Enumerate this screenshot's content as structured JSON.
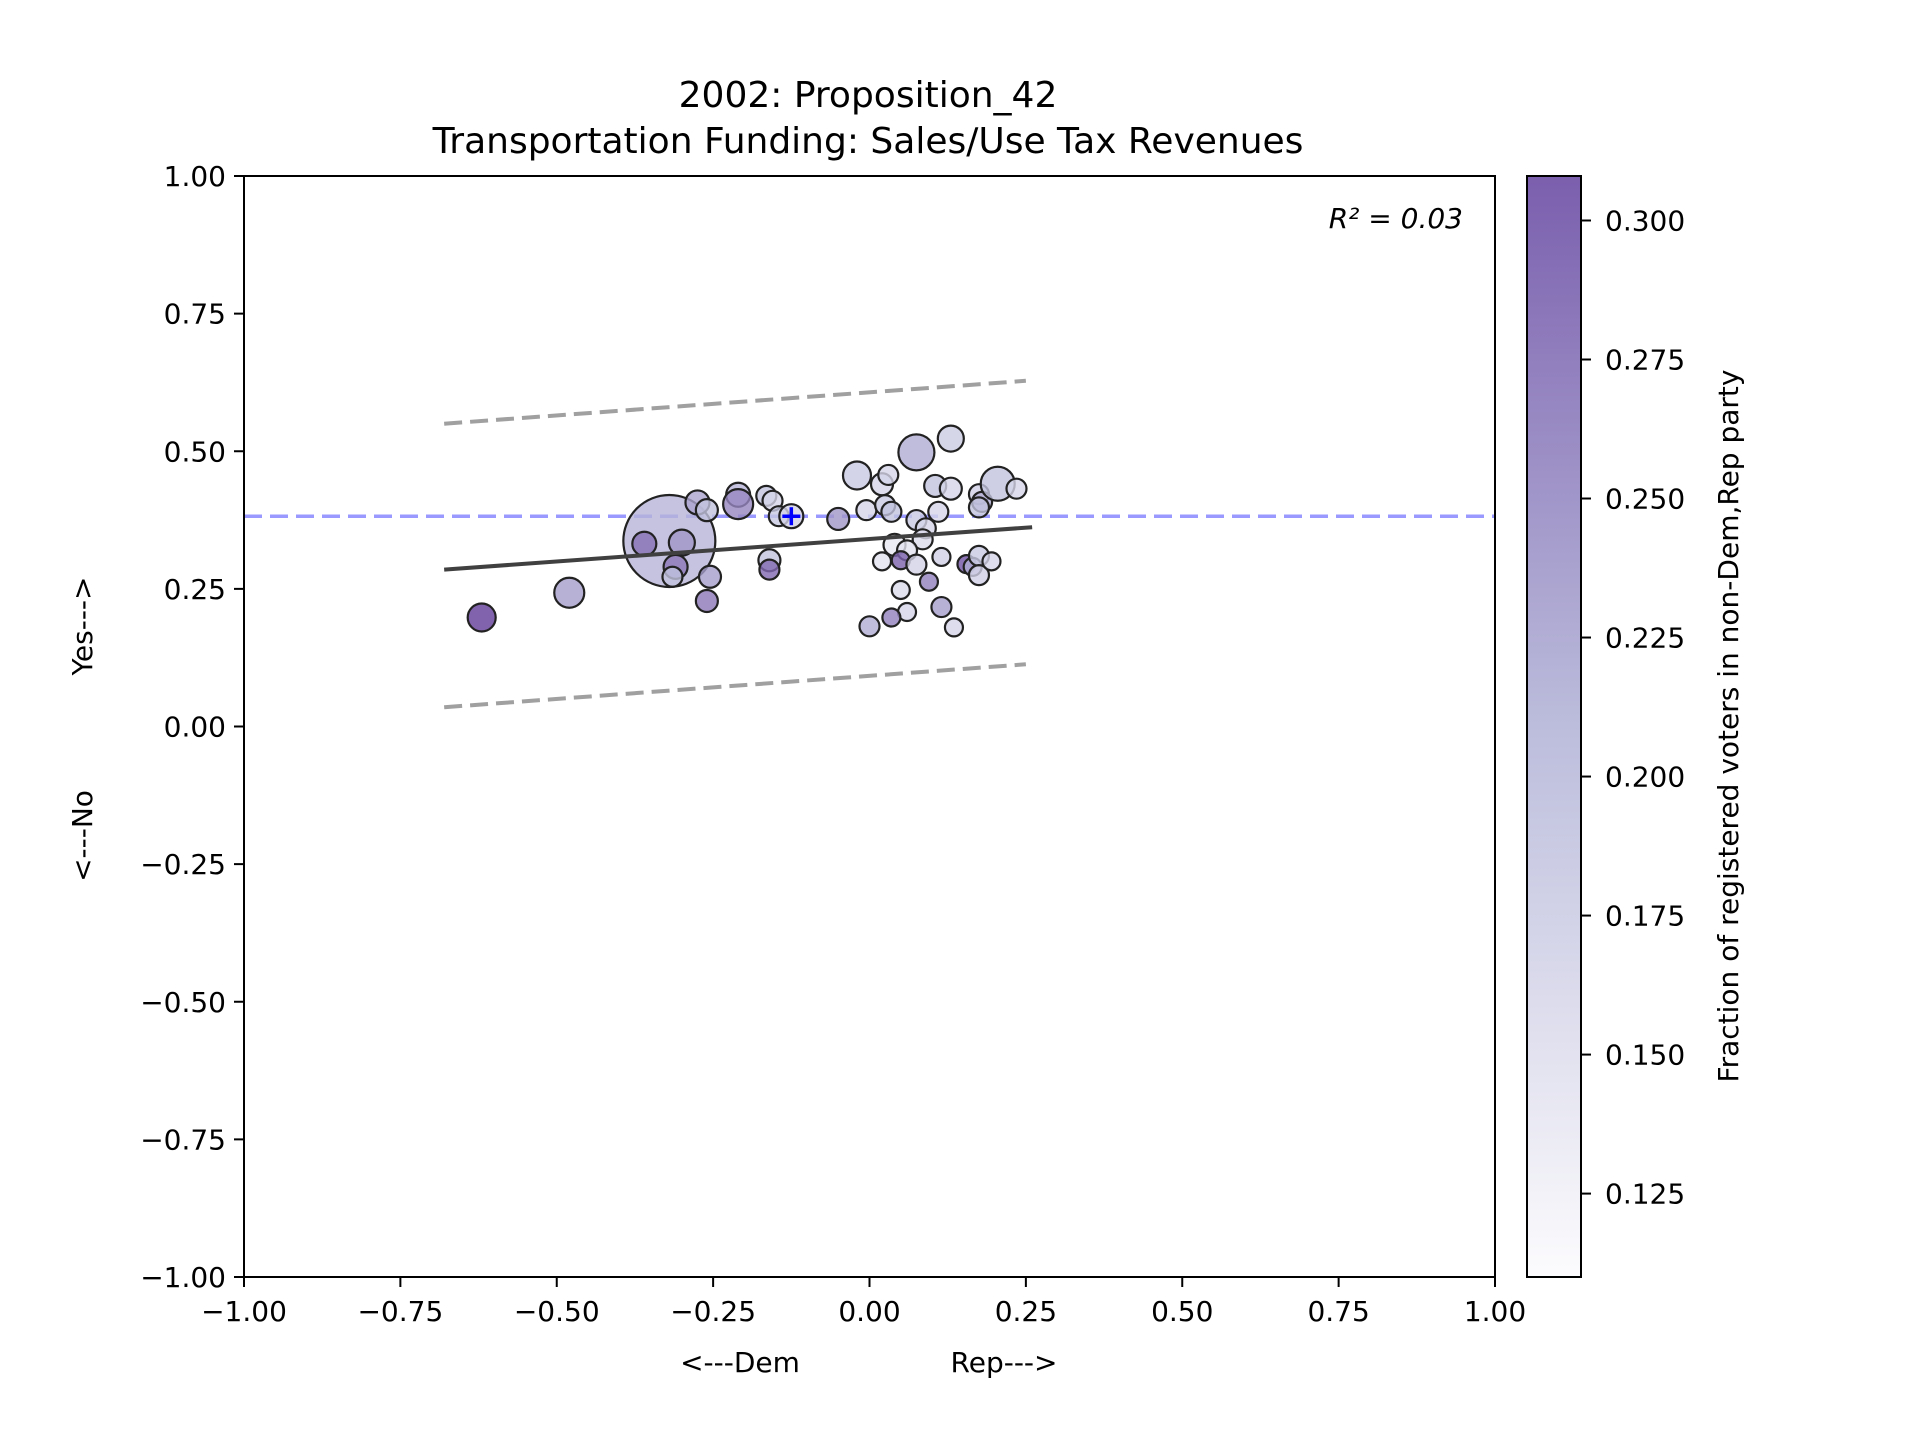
{
  "chart_data": {
    "type": "scatter",
    "title_line1": "2002: Proposition_42",
    "title_line2": "Transportation Funding: Sales/Use Tax Revenues",
    "xlabel_left": "<---Dem",
    "xlabel_right": "Rep--->",
    "ylabel_bottom": "<---No",
    "ylabel_top": "Yes--->",
    "colorbar_label": "Fraction of registered voters in non-Dem,Rep party",
    "annotation": "R² = 0.03",
    "xlim": [
      -1.0,
      1.0
    ],
    "ylim": [
      -1.0,
      1.0
    ],
    "x_ticks": [
      "−1.00",
      "−0.75",
      "−0.50",
      "−0.25",
      "0.00",
      "0.25",
      "0.50",
      "0.75",
      "1.00"
    ],
    "x_tick_values": [
      -1.0,
      -0.75,
      -0.5,
      -0.25,
      0.0,
      0.25,
      0.5,
      0.75,
      1.0
    ],
    "y_ticks": [
      "−1.00",
      "−0.75",
      "−0.50",
      "−0.25",
      "0.00",
      "0.25",
      "0.50",
      "0.75",
      "1.00"
    ],
    "y_tick_values": [
      -1.0,
      -0.75,
      -0.5,
      -0.25,
      0.0,
      0.25,
      0.5,
      0.75,
      1.0
    ],
    "colorbar_range": [
      0.11,
      0.308
    ],
    "colorbar_ticks": [
      "0.125",
      "0.150",
      "0.175",
      "0.200",
      "0.225",
      "0.250",
      "0.275",
      "0.300"
    ],
    "colorbar_tick_values": [
      0.125,
      0.15,
      0.175,
      0.2,
      0.225,
      0.25,
      0.275,
      0.3
    ],
    "colormap": {
      "low": "#fcfbfd",
      "mid": "#bcbddc",
      "high": "#54278f"
    },
    "reference_y": 0.382,
    "reference_color": "#9999ff",
    "reference_point": {
      "x": -0.125,
      "y": 0.382,
      "color": "#0000ff"
    },
    "fit_line": {
      "x": [
        -0.68,
        0.26
      ],
      "y": [
        0.285,
        0.362
      ],
      "color": "#404040"
    },
    "upper_band": {
      "x": [
        -0.68,
        0.25
      ],
      "y": [
        0.55,
        0.628
      ],
      "color": "#a0a0a0"
    },
    "lower_band": {
      "x": [
        -0.68,
        0.25
      ],
      "y": [
        0.035,
        0.113
      ],
      "color": "#a0a0a0"
    },
    "points": [
      {
        "x": -0.62,
        "y": 0.198,
        "c": 0.295,
        "s": 14
      },
      {
        "x": -0.48,
        "y": 0.243,
        "c": 0.23,
        "s": 15
      },
      {
        "x": -0.32,
        "y": 0.337,
        "c": 0.215,
        "s": 46
      },
      {
        "x": -0.36,
        "y": 0.332,
        "c": 0.26,
        "s": 12
      },
      {
        "x": -0.3,
        "y": 0.334,
        "c": 0.235,
        "s": 13
      },
      {
        "x": -0.31,
        "y": 0.29,
        "c": 0.255,
        "s": 12
      },
      {
        "x": -0.315,
        "y": 0.272,
        "c": 0.2,
        "s": 10
      },
      {
        "x": -0.255,
        "y": 0.272,
        "c": 0.23,
        "s": 11
      },
      {
        "x": -0.26,
        "y": 0.228,
        "c": 0.255,
        "s": 11
      },
      {
        "x": -0.275,
        "y": 0.407,
        "c": 0.225,
        "s": 12
      },
      {
        "x": -0.26,
        "y": 0.393,
        "c": 0.2,
        "s": 11
      },
      {
        "x": -0.21,
        "y": 0.421,
        "c": 0.215,
        "s": 12
      },
      {
        "x": -0.21,
        "y": 0.404,
        "c": 0.245,
        "s": 15
      },
      {
        "x": -0.165,
        "y": 0.419,
        "c": 0.2,
        "s": 10
      },
      {
        "x": -0.155,
        "y": 0.41,
        "c": 0.17,
        "s": 10
      },
      {
        "x": -0.16,
        "y": 0.302,
        "c": 0.2,
        "s": 11
      },
      {
        "x": -0.16,
        "y": 0.285,
        "c": 0.265,
        "s": 10
      },
      {
        "x": -0.145,
        "y": 0.382,
        "c": 0.19,
        "s": 10
      },
      {
        "x": -0.125,
        "y": 0.382,
        "c": 0.175,
        "s": 12
      },
      {
        "x": -0.05,
        "y": 0.377,
        "c": 0.235,
        "s": 11
      },
      {
        "x": -0.02,
        "y": 0.456,
        "c": 0.19,
        "s": 14
      },
      {
        "x": 0.02,
        "y": 0.44,
        "c": 0.17,
        "s": 11
      },
      {
        "x": 0.03,
        "y": 0.457,
        "c": 0.17,
        "s": 10
      },
      {
        "x": -0.005,
        "y": 0.393,
        "c": 0.17,
        "s": 10
      },
      {
        "x": 0.025,
        "y": 0.402,
        "c": 0.19,
        "s": 10
      },
      {
        "x": 0.035,
        "y": 0.39,
        "c": 0.2,
        "s": 10
      },
      {
        "x": 0.075,
        "y": 0.498,
        "c": 0.22,
        "s": 18
      },
      {
        "x": 0.13,
        "y": 0.523,
        "c": 0.185,
        "s": 13
      },
      {
        "x": 0.105,
        "y": 0.437,
        "c": 0.2,
        "s": 11
      },
      {
        "x": 0.13,
        "y": 0.432,
        "c": 0.17,
        "s": 11
      },
      {
        "x": 0.175,
        "y": 0.422,
        "c": 0.18,
        "s": 10
      },
      {
        "x": 0.18,
        "y": 0.408,
        "c": 0.22,
        "s": 10
      },
      {
        "x": 0.175,
        "y": 0.398,
        "c": 0.2,
        "s": 10
      },
      {
        "x": 0.205,
        "y": 0.441,
        "c": 0.2,
        "s": 17
      },
      {
        "x": 0.235,
        "y": 0.432,
        "c": 0.17,
        "s": 10
      },
      {
        "x": 0.11,
        "y": 0.39,
        "c": 0.17,
        "s": 10
      },
      {
        "x": 0.075,
        "y": 0.375,
        "c": 0.19,
        "s": 10
      },
      {
        "x": 0.09,
        "y": 0.36,
        "c": 0.17,
        "s": 10
      },
      {
        "x": 0.085,
        "y": 0.34,
        "c": 0.16,
        "s": 10
      },
      {
        "x": 0.04,
        "y": 0.33,
        "c": 0.14,
        "s": 11
      },
      {
        "x": 0.06,
        "y": 0.32,
        "c": 0.15,
        "s": 10
      },
      {
        "x": 0.02,
        "y": 0.3,
        "c": 0.15,
        "s": 9
      },
      {
        "x": 0.05,
        "y": 0.302,
        "c": 0.27,
        "s": 9
      },
      {
        "x": 0.075,
        "y": 0.294,
        "c": 0.175,
        "s": 10
      },
      {
        "x": 0.115,
        "y": 0.308,
        "c": 0.18,
        "s": 9
      },
      {
        "x": 0.095,
        "y": 0.263,
        "c": 0.25,
        "s": 9
      },
      {
        "x": 0.05,
        "y": 0.248,
        "c": 0.16,
        "s": 9
      },
      {
        "x": 0.06,
        "y": 0.208,
        "c": 0.17,
        "s": 9
      },
      {
        "x": 0.035,
        "y": 0.198,
        "c": 0.25,
        "s": 9
      },
      {
        "x": 0.0,
        "y": 0.182,
        "c": 0.22,
        "s": 10
      },
      {
        "x": 0.115,
        "y": 0.217,
        "c": 0.23,
        "s": 10
      },
      {
        "x": 0.135,
        "y": 0.18,
        "c": 0.17,
        "s": 9
      },
      {
        "x": 0.155,
        "y": 0.295,
        "c": 0.28,
        "s": 9
      },
      {
        "x": 0.165,
        "y": 0.29,
        "c": 0.22,
        "s": 9
      },
      {
        "x": 0.175,
        "y": 0.31,
        "c": 0.19,
        "s": 10
      },
      {
        "x": 0.175,
        "y": 0.275,
        "c": 0.18,
        "s": 10
      },
      {
        "x": 0.195,
        "y": 0.3,
        "c": 0.17,
        "s": 9
      }
    ]
  }
}
